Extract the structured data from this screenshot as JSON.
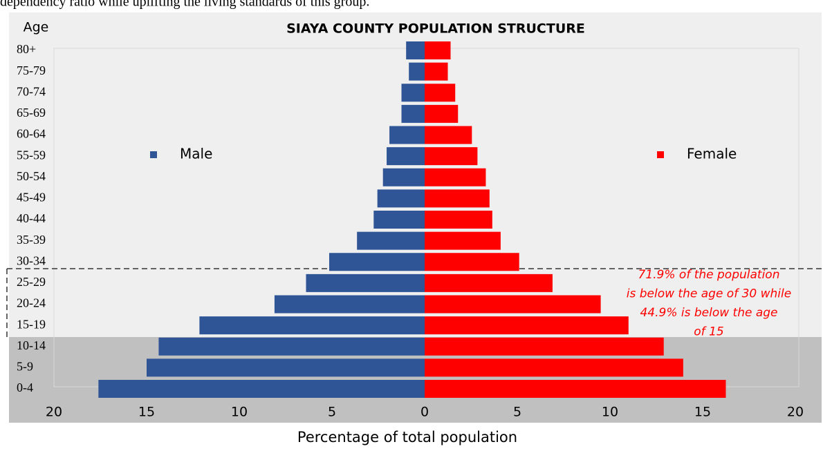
{
  "header_text": "dependency ratio while uplifting the living standards of this group.",
  "chart_data": {
    "type": "population-pyramid",
    "title": "SIAYA COUNTY POPULATION STRUCTURE",
    "y_label": "Age",
    "x_label": "Percentage of total population",
    "categories": [
      "0-4",
      "5-9",
      "10-14",
      "15-19",
      "20-24",
      "25-29",
      "30-34",
      "35-39",
      "40-44",
      "45-49",
      "50-54",
      "55-59",
      "60-64",
      "65-69",
      "70-74",
      "75-79",
      "80+"
    ],
    "series": [
      {
        "name": "Male",
        "color": "#2f5597",
        "values": [
          -17.6,
          -15.0,
          -14.35,
          -12.15,
          -8.1,
          -6.4,
          -5.15,
          -3.65,
          -2.75,
          -2.55,
          -2.25,
          -2.05,
          -1.9,
          -1.25,
          -1.25,
          -0.85,
          -1.0
        ]
      },
      {
        "name": "Female",
        "color": "#ff0000",
        "values": [
          16.25,
          13.95,
          12.9,
          11.0,
          9.5,
          6.9,
          5.1,
          4.1,
          3.65,
          3.5,
          3.3,
          2.85,
          2.55,
          1.8,
          1.65,
          1.25,
          1.4
        ]
      }
    ],
    "xlim": [
      -20,
      20
    ],
    "xticks": [
      {
        "value": -20,
        "label": "20"
      },
      {
        "value": -15,
        "label": "15"
      },
      {
        "value": -10,
        "label": "10"
      },
      {
        "value": -5,
        "label": "5"
      },
      0,
      5,
      10,
      15,
      20
    ],
    "annotation": [
      "71.9%  of the population",
      "is below the age of 30 while",
      "44.9% is below the age",
      "of 15"
    ]
  }
}
